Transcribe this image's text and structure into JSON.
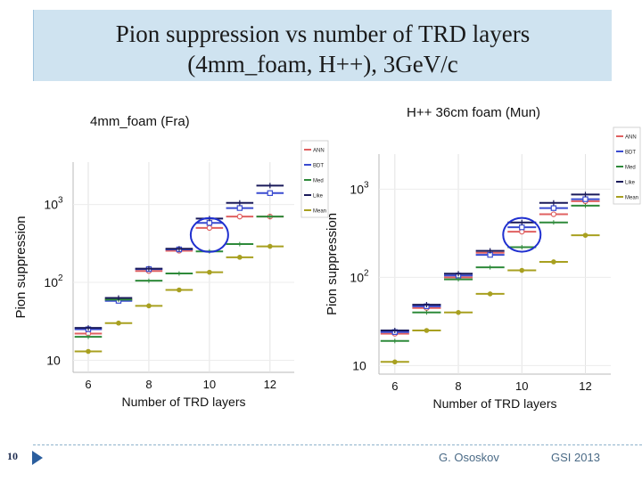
{
  "slide": {
    "title_line1": "Pion suppression vs number of TRD layers",
    "title_line2": "(4mm_foam, H++), 3GeV/c",
    "page_number": "10",
    "footer_author": "G. Ososkov",
    "footer_event": "GSI 2013"
  },
  "colors": {
    "ANN": "#e06060",
    "BDT": "#3a4bd0",
    "Med": "#2e8a3a",
    "Like": "#1a1a5a",
    "Mean": "#a8a020",
    "highlight": "#2030d0"
  },
  "chart_data": [
    {
      "type": "scatter",
      "panel_title": "4mm_foam (Fra)",
      "xlabel": "Number of TRD layers",
      "ylabel": "Pion suppression",
      "yscale": "log",
      "xlim": [
        5.5,
        12.8
      ],
      "ylim": [
        7,
        3500
      ],
      "x_ticks": [
        "6",
        "8",
        "10",
        "12"
      ],
      "y_ticks": [
        "10",
        "10^2",
        "10^3"
      ],
      "legend_position": "top-right",
      "highlighted_x": 10,
      "x": [
        6,
        7,
        8,
        9,
        10,
        11,
        12
      ],
      "series": [
        {
          "name": "ANN",
          "values": [
            22,
            60,
            140,
            255,
            500,
            700,
            700
          ]
        },
        {
          "name": "BDT",
          "values": [
            25,
            58,
            148,
            265,
            580,
            900,
            1400
          ]
        },
        {
          "name": "Med",
          "values": [
            20,
            60,
            105,
            130,
            250,
            310,
            700
          ]
        },
        {
          "name": "Like",
          "values": [
            26,
            63,
            150,
            270,
            660,
            1050,
            1750
          ]
        },
        {
          "name": "Mean",
          "values": [
            13,
            30,
            50,
            80,
            135,
            210,
            290
          ]
        }
      ]
    },
    {
      "type": "scatter",
      "panel_title": "H++ 36cm foam (Mun)",
      "xlabel": "Number of TRD layers",
      "ylabel": "Pion suppression",
      "yscale": "log",
      "xlim": [
        5.5,
        12.8
      ],
      "ylim": [
        8,
        2500
      ],
      "x_ticks": [
        "6",
        "8",
        "10",
        "12"
      ],
      "y_ticks": [
        "10",
        "10^2",
        "10^3"
      ],
      "legend_position": "top-right",
      "highlighted_x": 10,
      "x": [
        6,
        7,
        8,
        9,
        10,
        11,
        12
      ],
      "series": [
        {
          "name": "ANN",
          "values": [
            23,
            45,
            100,
            190,
            330,
            520,
            730
          ]
        },
        {
          "name": "BDT",
          "values": [
            24,
            47,
            105,
            180,
            370,
            610,
            770
          ]
        },
        {
          "name": "Med",
          "values": [
            19,
            40,
            95,
            130,
            220,
            420,
            650
          ]
        },
        {
          "name": "Like",
          "values": [
            25,
            49,
            110,
            200,
            420,
            700,
            870
          ]
        },
        {
          "name": "Mean",
          "values": [
            11,
            25,
            40,
            65,
            120,
            150,
            300
          ]
        }
      ]
    }
  ]
}
